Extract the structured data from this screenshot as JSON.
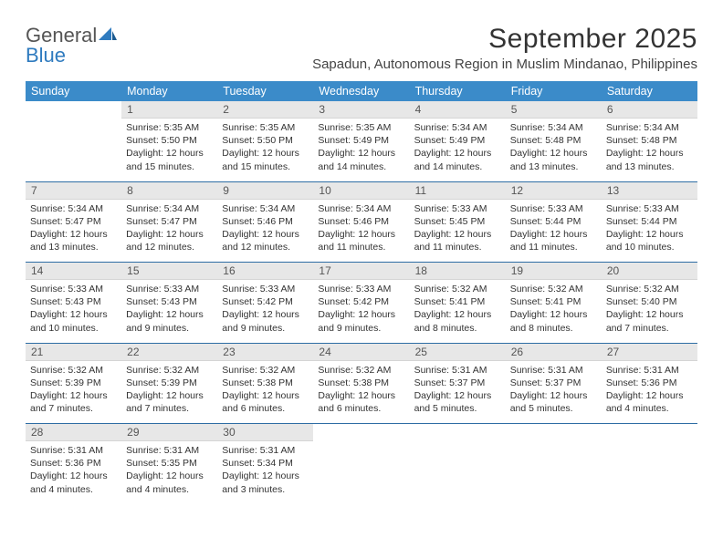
{
  "logo": {
    "word1": "General",
    "word2": "Blue"
  },
  "title": "September 2025",
  "location": "Sapadun, Autonomous Region in Muslim Mindanao, Philippines",
  "colors": {
    "header_bg": "#3b8bc9",
    "header_text": "#ffffff",
    "daynum_bg": "#e7e7e7",
    "week_sep": "#2e6da4",
    "logo_blue": "#2f7bbf",
    "text": "#333333"
  },
  "weekdays": [
    "Sunday",
    "Monday",
    "Tuesday",
    "Wednesday",
    "Thursday",
    "Friday",
    "Saturday"
  ],
  "first_weekday_index": 1,
  "days": [
    {
      "n": 1,
      "sunrise": "5:35 AM",
      "sunset": "5:50 PM",
      "daylight": "12 hours and 15 minutes."
    },
    {
      "n": 2,
      "sunrise": "5:35 AM",
      "sunset": "5:50 PM",
      "daylight": "12 hours and 15 minutes."
    },
    {
      "n": 3,
      "sunrise": "5:35 AM",
      "sunset": "5:49 PM",
      "daylight": "12 hours and 14 minutes."
    },
    {
      "n": 4,
      "sunrise": "5:34 AM",
      "sunset": "5:49 PM",
      "daylight": "12 hours and 14 minutes."
    },
    {
      "n": 5,
      "sunrise": "5:34 AM",
      "sunset": "5:48 PM",
      "daylight": "12 hours and 13 minutes."
    },
    {
      "n": 6,
      "sunrise": "5:34 AM",
      "sunset": "5:48 PM",
      "daylight": "12 hours and 13 minutes."
    },
    {
      "n": 7,
      "sunrise": "5:34 AM",
      "sunset": "5:47 PM",
      "daylight": "12 hours and 13 minutes."
    },
    {
      "n": 8,
      "sunrise": "5:34 AM",
      "sunset": "5:47 PM",
      "daylight": "12 hours and 12 minutes."
    },
    {
      "n": 9,
      "sunrise": "5:34 AM",
      "sunset": "5:46 PM",
      "daylight": "12 hours and 12 minutes."
    },
    {
      "n": 10,
      "sunrise": "5:34 AM",
      "sunset": "5:46 PM",
      "daylight": "12 hours and 11 minutes."
    },
    {
      "n": 11,
      "sunrise": "5:33 AM",
      "sunset": "5:45 PM",
      "daylight": "12 hours and 11 minutes."
    },
    {
      "n": 12,
      "sunrise": "5:33 AM",
      "sunset": "5:44 PM",
      "daylight": "12 hours and 11 minutes."
    },
    {
      "n": 13,
      "sunrise": "5:33 AM",
      "sunset": "5:44 PM",
      "daylight": "12 hours and 10 minutes."
    },
    {
      "n": 14,
      "sunrise": "5:33 AM",
      "sunset": "5:43 PM",
      "daylight": "12 hours and 10 minutes."
    },
    {
      "n": 15,
      "sunrise": "5:33 AM",
      "sunset": "5:43 PM",
      "daylight": "12 hours and 9 minutes."
    },
    {
      "n": 16,
      "sunrise": "5:33 AM",
      "sunset": "5:42 PM",
      "daylight": "12 hours and 9 minutes."
    },
    {
      "n": 17,
      "sunrise": "5:33 AM",
      "sunset": "5:42 PM",
      "daylight": "12 hours and 9 minutes."
    },
    {
      "n": 18,
      "sunrise": "5:32 AM",
      "sunset": "5:41 PM",
      "daylight": "12 hours and 8 minutes."
    },
    {
      "n": 19,
      "sunrise": "5:32 AM",
      "sunset": "5:41 PM",
      "daylight": "12 hours and 8 minutes."
    },
    {
      "n": 20,
      "sunrise": "5:32 AM",
      "sunset": "5:40 PM",
      "daylight": "12 hours and 7 minutes."
    },
    {
      "n": 21,
      "sunrise": "5:32 AM",
      "sunset": "5:39 PM",
      "daylight": "12 hours and 7 minutes."
    },
    {
      "n": 22,
      "sunrise": "5:32 AM",
      "sunset": "5:39 PM",
      "daylight": "12 hours and 7 minutes."
    },
    {
      "n": 23,
      "sunrise": "5:32 AM",
      "sunset": "5:38 PM",
      "daylight": "12 hours and 6 minutes."
    },
    {
      "n": 24,
      "sunrise": "5:32 AM",
      "sunset": "5:38 PM",
      "daylight": "12 hours and 6 minutes."
    },
    {
      "n": 25,
      "sunrise": "5:31 AM",
      "sunset": "5:37 PM",
      "daylight": "12 hours and 5 minutes."
    },
    {
      "n": 26,
      "sunrise": "5:31 AM",
      "sunset": "5:37 PM",
      "daylight": "12 hours and 5 minutes."
    },
    {
      "n": 27,
      "sunrise": "5:31 AM",
      "sunset": "5:36 PM",
      "daylight": "12 hours and 4 minutes."
    },
    {
      "n": 28,
      "sunrise": "5:31 AM",
      "sunset": "5:36 PM",
      "daylight": "12 hours and 4 minutes."
    },
    {
      "n": 29,
      "sunrise": "5:31 AM",
      "sunset": "5:35 PM",
      "daylight": "12 hours and 4 minutes."
    },
    {
      "n": 30,
      "sunrise": "5:31 AM",
      "sunset": "5:34 PM",
      "daylight": "12 hours and 3 minutes."
    }
  ],
  "labels": {
    "sunrise": "Sunrise:",
    "sunset": "Sunset:",
    "daylight": "Daylight:"
  }
}
